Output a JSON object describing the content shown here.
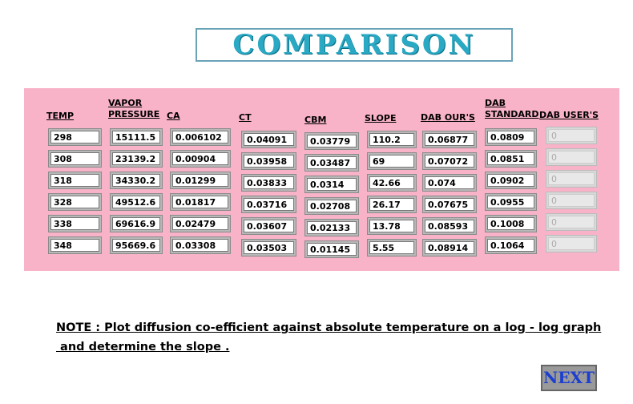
{
  "header": {
    "title": "COMPARISON"
  },
  "table": {
    "columns": [
      {
        "label": "TEMP",
        "values": [
          "298",
          "308",
          "318",
          "328",
          "338",
          "348"
        ]
      },
      {
        "label": "VAPOR PRESSURE",
        "values": [
          "15111.5",
          "23139.2",
          "34330.2",
          "49512.6",
          "69616.9",
          "95669.6"
        ]
      },
      {
        "label": "CA",
        "values": [
          "0.006102",
          "0.00904",
          "0.01299",
          "0.01817",
          "0.02479",
          "0.03308"
        ]
      },
      {
        "label": "CT",
        "values": [
          "0.04091",
          "0.03958",
          "0.03833",
          "0.03716",
          "0.03607",
          "0.03503"
        ]
      },
      {
        "label": "CBM",
        "values": [
          "0.03779",
          "0.03487",
          "0.0314",
          "0.02708",
          "0.02133",
          "0.01145"
        ]
      },
      {
        "label": "SLOPE",
        "values": [
          "110.2",
          "69",
          "42.66",
          "26.17",
          "13.78",
          "5.55"
        ]
      },
      {
        "label": "DAB OUR'S",
        "values": [
          "0.06877",
          "0.07072",
          "0.074",
          "0.07675",
          "0.08593",
          "0.08914"
        ]
      },
      {
        "label": "DAB STANDARD",
        "values": [
          "0.0809",
          "0.0851",
          "0.0902",
          "0.0955",
          "0.1008",
          "0.1064"
        ]
      },
      {
        "label": "DAB USER'S",
        "values": [
          "0",
          "0",
          "0",
          "0",
          "0",
          "0"
        ]
      }
    ]
  },
  "note": {
    "line1": "NOTE : Plot diffusion co-efficient against absolute temperature on a log - log graph",
    "line2": " and determine the slope ."
  },
  "button": {
    "label": "NEXT"
  }
}
